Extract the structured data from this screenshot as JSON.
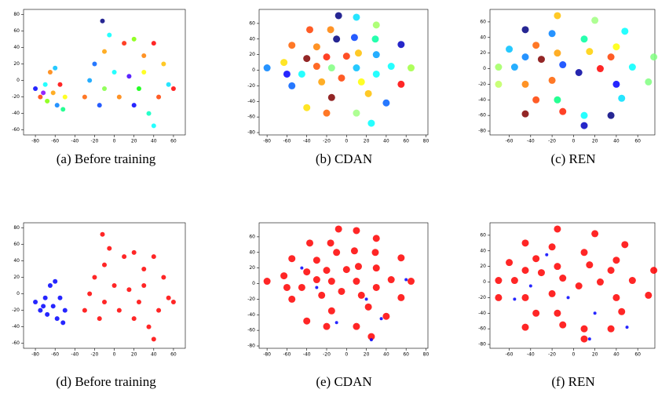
{
  "chart_data": [
    {
      "type": "scatter",
      "caption": "(a) Before training",
      "x": [
        -80,
        -75,
        -70,
        -68,
        -62,
        -58,
        -55,
        -50,
        -65,
        -60,
        -52,
        -72,
        -12,
        -20,
        -10,
        0,
        10,
        20,
        30,
        40,
        50,
        55,
        45,
        35,
        40,
        20,
        5,
        -10,
        -25,
        -30,
        15,
        30,
        -5,
        60,
        25,
        -15
      ],
      "values": [
        -10,
        -20,
        -5,
        -25,
        -15,
        -30,
        -5,
        -20,
        10,
        15,
        -35,
        -15,
        72,
        20,
        35,
        10,
        45,
        50,
        30,
        45,
        20,
        -5,
        -20,
        -40,
        -55,
        -30,
        -20,
        -10,
        0,
        -20,
        5,
        10,
        55,
        -10,
        -10,
        -30
      ],
      "colors": [
        "#0000ff",
        "#ff4000",
        "#00ffff",
        "#80ff00",
        "#ffa000",
        "#0080ff",
        "#ff0000",
        "#ffff00",
        "#ff8000",
        "#00c0ff",
        "#00ff80",
        "#8000ff",
        "#000080",
        "#0060ff",
        "#ffa000",
        "#00ffff",
        "#ff2000",
        "#80ff00",
        "#ff8000",
        "#ff0000",
        "#ffc000",
        "#00e0ff",
        "#ff4000",
        "#00ffc0",
        "#00ffff",
        "#0000ff",
        "#ff8000",
        "#80ff40",
        "#00a0ff",
        "#ff6000",
        "#4000ff",
        "#ffff00",
        "#00ffff",
        "#ff0000",
        "#00ff00",
        "#0040ff"
      ],
      "xlim": [
        -92,
        72
      ],
      "ylim": [
        -66,
        86
      ],
      "xticks": [
        -80,
        -60,
        -40,
        -20,
        0,
        20,
        40,
        60
      ],
      "yticks": [
        -60,
        -40,
        -20,
        0,
        20,
        40,
        60,
        80
      ]
    },
    {
      "type": "scatter",
      "caption": "(b) CDAN",
      "x": [
        -8,
        10,
        30,
        -37,
        -16,
        8,
        -10,
        29,
        -55,
        -30,
        55,
        -40,
        -20,
        0,
        12,
        30,
        -63,
        -80,
        -60,
        -30,
        -15,
        10,
        45,
        65,
        -45,
        -5,
        30,
        -55,
        -25,
        15,
        55,
        -15,
        40,
        -40,
        -20,
        10,
        25,
        22
      ],
      "values": [
        70,
        68,
        58,
        52,
        52,
        42,
        40,
        40,
        32,
        30,
        33,
        15,
        17,
        18,
        22,
        20,
        10,
        3,
        -5,
        5,
        3,
        3,
        5,
        3,
        -5,
        -10,
        -5,
        -20,
        -15,
        -15,
        -18,
        -35,
        -42,
        -48,
        -55,
        -55,
        -68,
        -30
      ],
      "colors": [
        "#000080",
        "#00e0ff",
        "#a0ff60",
        "#ff4000",
        "#ff8000",
        "#0040ff",
        "#000080",
        "#00ffa0",
        "#ff6000",
        "#ff8000",
        "#0000c0",
        "#800000",
        "#ff2000",
        "#ff3000",
        "#ffc000",
        "#00a0ff",
        "#ffe000",
        "#0080ff",
        "#0000ff",
        "#ff5000",
        "#80ff80",
        "#00c0ff",
        "#00ffff",
        "#a0ff40",
        "#00ffff",
        "#ff4000",
        "#00ffff",
        "#0060ff",
        "#ffa000",
        "#ffff00",
        "#ff0000",
        "#800000",
        "#0060ff",
        "#ffe000",
        "#ff6000",
        "#a0ff80",
        "#00ffff",
        "#ffc000"
      ],
      "xlim": [
        -88,
        82
      ],
      "ylim": [
        -83,
        78
      ],
      "xticks": [
        -80,
        -60,
        -40,
        -20,
        0,
        20,
        40,
        60,
        80
      ],
      "yticks": [
        -80,
        -60,
        -40,
        -20,
        0,
        20,
        40,
        60
      ]
    },
    {
      "type": "scatter",
      "caption": "(c) REN",
      "x": [
        -15,
        20,
        -45,
        48,
        -20,
        10,
        -35,
        40,
        -60,
        -45,
        -30,
        -15,
        15,
        35,
        75,
        -70,
        -55,
        -10,
        5,
        25,
        55,
        -45,
        -70,
        -20,
        40,
        70,
        -35,
        -15,
        45,
        -45,
        -10,
        10,
        35,
        10
      ],
      "values": [
        68,
        62,
        50,
        48,
        45,
        38,
        30,
        28,
        25,
        15,
        12,
        20,
        22,
        15,
        15,
        2,
        2,
        5,
        -5,
        0,
        2,
        -20,
        -20,
        -15,
        -20,
        -17,
        -40,
        -40,
        -38,
        -58,
        -55,
        -60,
        -60,
        -73
      ],
      "colors": [
        "#ffc000",
        "#a0ff80",
        "#000080",
        "#00ffff",
        "#0080ff",
        "#00ffa0",
        "#ff6000",
        "#ffff00",
        "#00c0ff",
        "#0080ff",
        "#800000",
        "#ffa000",
        "#ffd000",
        "#ff4000",
        "#80ff80",
        "#a0ff60",
        "#00a0ff",
        "#0040ff",
        "#0000a0",
        "#ff0000",
        "#00ffff",
        "#ff8000",
        "#c0ff60",
        "#ff6000",
        "#0000ff",
        "#80ff80",
        "#ff4000",
        "#00ff80",
        "#00e0ff",
        "#800000",
        "#ff2000",
        "#00ffff",
        "#000080",
        "#0000c0"
      ],
      "xlim": [
        -78,
        76
      ],
      "ylim": [
        -85,
        76
      ],
      "xticks": [
        -60,
        -40,
        -20,
        0,
        20,
        40,
        60
      ],
      "yticks": [
        -80,
        -60,
        -40,
        -20,
        0,
        20,
        40,
        60
      ]
    },
    {
      "type": "scatter",
      "caption": "(d) Before training",
      "series": [
        {
          "color": "#0000ff",
          "x": [
            -80,
            -75,
            -70,
            -68,
            -62,
            -58,
            -55,
            -50,
            -65,
            -60,
            -52,
            -72
          ],
          "values": [
            -10,
            -20,
            -5,
            -25,
            -15,
            -30,
            -5,
            -20,
            10,
            15,
            -35,
            -15
          ]
        },
        {
          "color": "#ff0000",
          "x": [
            -12,
            -20,
            -10,
            0,
            10,
            20,
            30,
            40,
            50,
            55,
            45,
            35,
            40,
            20,
            5,
            -10,
            -25,
            -30,
            15,
            30,
            -5,
            60,
            25,
            -15
          ],
          "values": [
            72,
            20,
            35,
            10,
            45,
            50,
            30,
            45,
            20,
            -5,
            -20,
            -40,
            -55,
            -30,
            -20,
            -10,
            0,
            -20,
            5,
            10,
            55,
            -10,
            -10,
            -30
          ]
        }
      ],
      "xlim": [
        -92,
        72
      ],
      "ylim": [
        -66,
        86
      ],
      "xticks": [
        -80,
        -60,
        -40,
        -20,
        0,
        20,
        40,
        60
      ],
      "yticks": [
        -60,
        -40,
        -20,
        0,
        20,
        40,
        60,
        80
      ]
    },
    {
      "type": "scatter",
      "caption": "(e) CDAN",
      "series": [
        {
          "color": "#ff0000",
          "x": [
            -8,
            10,
            30,
            -37,
            -16,
            8,
            -10,
            29,
            -55,
            -30,
            55,
            -40,
            -20,
            0,
            12,
            30,
            -63,
            -80,
            -60,
            -30,
            -15,
            10,
            45,
            65,
            -45,
            -5,
            30,
            -55,
            -25,
            15,
            55,
            -15,
            40,
            -40,
            -20,
            10,
            25,
            22
          ],
          "values": [
            70,
            68,
            58,
            52,
            52,
            42,
            40,
            40,
            32,
            30,
            33,
            15,
            17,
            18,
            22,
            20,
            10,
            3,
            -5,
            5,
            3,
            3,
            5,
            3,
            -5,
            -10,
            -5,
            -20,
            -15,
            -15,
            -18,
            -35,
            -42,
            -48,
            -55,
            -55,
            -68,
            -30
          ]
        },
        {
          "color": "#0000ff",
          "x": [
            -30,
            20,
            -10,
            35,
            60,
            -45,
            25
          ],
          "values": [
            -5,
            -20,
            -50,
            -45,
            5,
            20,
            -72
          ]
        }
      ],
      "xlim": [
        -88,
        82
      ],
      "ylim": [
        -83,
        78
      ],
      "xticks": [
        -80,
        -60,
        -40,
        -20,
        0,
        20,
        40,
        60,
        80
      ],
      "yticks": [
        -80,
        -60,
        -40,
        -20,
        0,
        20,
        40,
        60
      ]
    },
    {
      "type": "scatter",
      "caption": "(f) REN",
      "series": [
        {
          "color": "#ff0000",
          "x": [
            -15,
            20,
            -45,
            48,
            -20,
            10,
            -35,
            40,
            -60,
            -45,
            -30,
            -15,
            15,
            35,
            75,
            -70,
            -55,
            -10,
            5,
            25,
            55,
            -45,
            -70,
            -20,
            40,
            70,
            -35,
            -15,
            45,
            -45,
            -10,
            10,
            35,
            10
          ],
          "values": [
            68,
            62,
            50,
            48,
            45,
            38,
            30,
            28,
            25,
            15,
            12,
            20,
            22,
            15,
            15,
            2,
            2,
            5,
            -5,
            0,
            2,
            -20,
            -20,
            -15,
            -20,
            -17,
            -40,
            -40,
            -38,
            -58,
            -55,
            -60,
            -60,
            -73
          ]
        },
        {
          "color": "#0000ff",
          "x": [
            -40,
            -5,
            20,
            -55,
            50,
            -25,
            15
          ],
          "values": [
            -5,
            -20,
            -40,
            -22,
            -58,
            35,
            -73
          ]
        }
      ],
      "xlim": [
        -78,
        76
      ],
      "ylim": [
        -85,
        76
      ],
      "xticks": [
        -60,
        -40,
        -20,
        0,
        20,
        40,
        60
      ],
      "yticks": [
        -80,
        -60,
        -40,
        -20,
        0,
        20,
        40,
        60
      ]
    }
  ]
}
